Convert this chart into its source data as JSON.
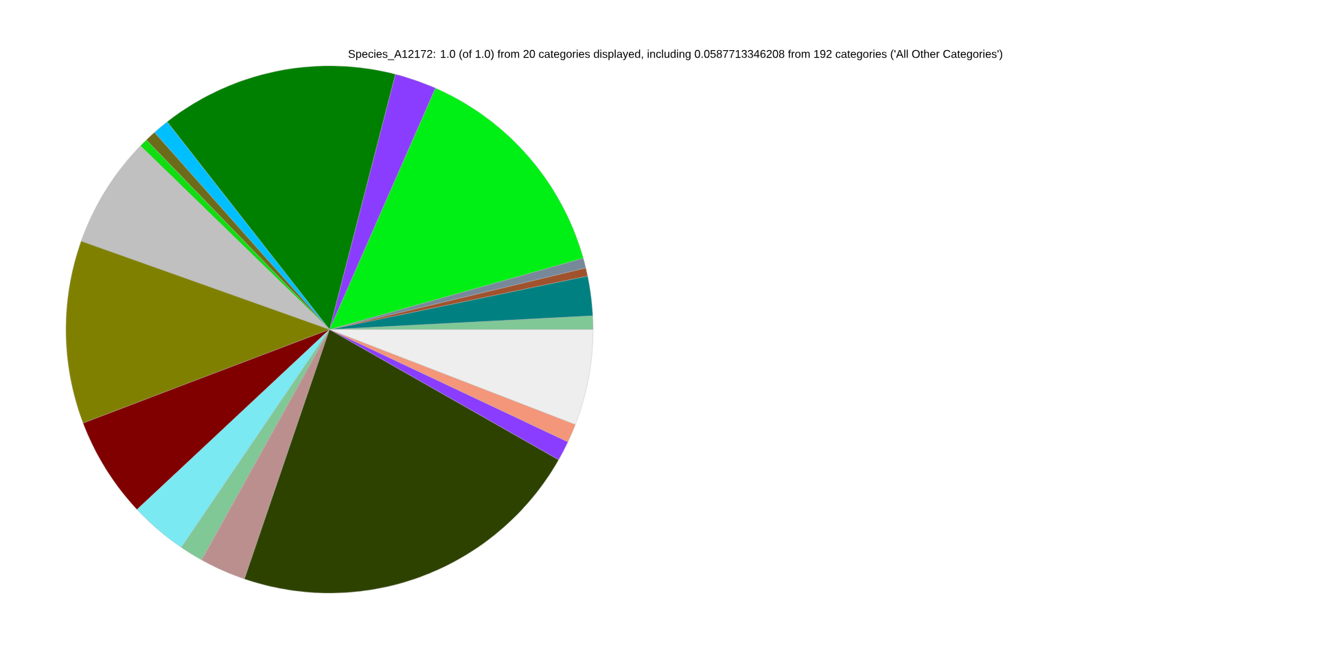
{
  "chart_data": {
    "type": "pie",
    "title": "Species_A12172: 1.0 (of 1.0) from 20 categories displayed, including 0.0587713346208 from 192 categories ('All Other Categories')",
    "categories": [
      null,
      null,
      null,
      null,
      null,
      null,
      null,
      null,
      null,
      null,
      null,
      null,
      null,
      null,
      null,
      null,
      null,
      null,
      null,
      null
    ],
    "values": [
      0.83,
      2.42,
      0.5,
      0.61,
      14.06,
      2.56,
      14.58,
      1.0,
      0.67,
      0.5,
      6.83,
      11.22,
      6.19,
      3.53,
      1.44,
      2.83,
      22.0,
      1.22,
      1.14,
      5.87
    ],
    "colors": [
      "#80c896",
      "#008080",
      "#a0522d",
      "#778899",
      "#00f015",
      "#8b3dff",
      "#008000",
      "#00bfff",
      "#6b6b1a",
      "#11dd11",
      "#c0c0c0",
      "#808000",
      "#800000",
      "#7ae9f2",
      "#80c896",
      "#bc8f8f",
      "#2e4200",
      "#8b3dff",
      "#f4967a",
      "#eeeeee"
    ]
  }
}
